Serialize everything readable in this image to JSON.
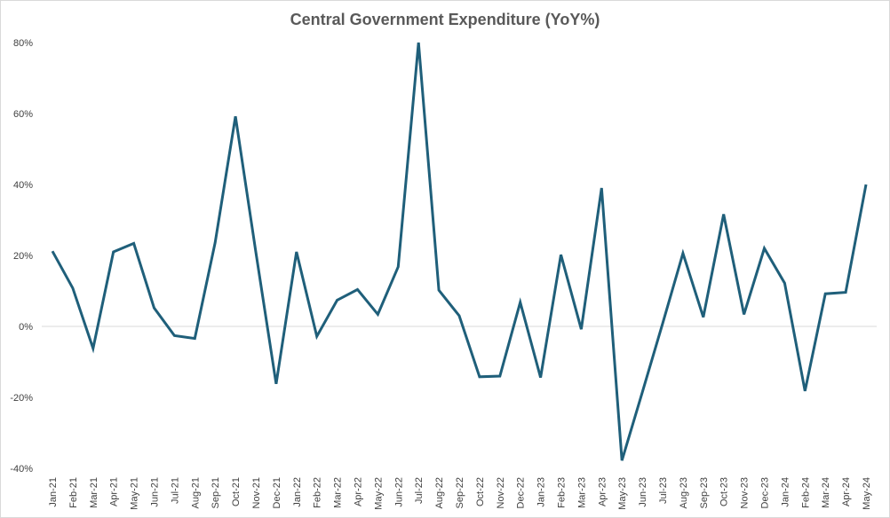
{
  "chart_data": {
    "type": "line",
    "title": "Central Government Expenditure (YoY%)",
    "xlabel": "",
    "ylabel": "",
    "ylim": [
      -40,
      80
    ],
    "y_ticks": [
      -40,
      -20,
      0,
      20,
      40,
      60,
      80
    ],
    "y_tick_labels": [
      "-40%",
      "-20%",
      "0%",
      "20%",
      "40%",
      "60%",
      "80%"
    ],
    "grid": "zero-line only",
    "line_color": "#1f5f7a",
    "categories": [
      "Jan-21",
      "Feb-21",
      "Mar-21",
      "Apr-21",
      "May-21",
      "Jun-21",
      "Jul-21",
      "Aug-21",
      "Sep-21",
      "Oct-21",
      "Nov-21",
      "Dec-21",
      "Jan-22",
      "Feb-22",
      "Mar-22",
      "Apr-22",
      "May-22",
      "Jun-22",
      "Jul-22",
      "Aug-22",
      "Sep-22",
      "Oct-22",
      "Nov-22",
      "Dec-22",
      "Jan-23",
      "Feb-23",
      "Mar-23",
      "Apr-23",
      "May-23",
      "Jun-23",
      "Jul-23",
      "Aug-23",
      "Sep-23",
      "Oct-23",
      "Nov-23",
      "Dec-23",
      "Jan-24",
      "Feb-24",
      "Mar-24",
      "Apr-24",
      "May-24"
    ],
    "values": [
      21.2,
      10.8,
      -6.2,
      21.0,
      23.4,
      5.2,
      -2.6,
      -3.4,
      23.6,
      59.2,
      21.0,
      -16.2,
      21.0,
      -2.8,
      7.4,
      10.4,
      3.4,
      16.8,
      80.0,
      10.2,
      3.0,
      -14.2,
      -14.0,
      6.8,
      -14.4,
      20.2,
      -0.8,
      39.0,
      -37.8,
      -18.6,
      0.8,
      20.6,
      2.6,
      31.6,
      3.4,
      22.0,
      12.2,
      -18.2,
      9.2,
      9.6,
      40.0
    ]
  }
}
